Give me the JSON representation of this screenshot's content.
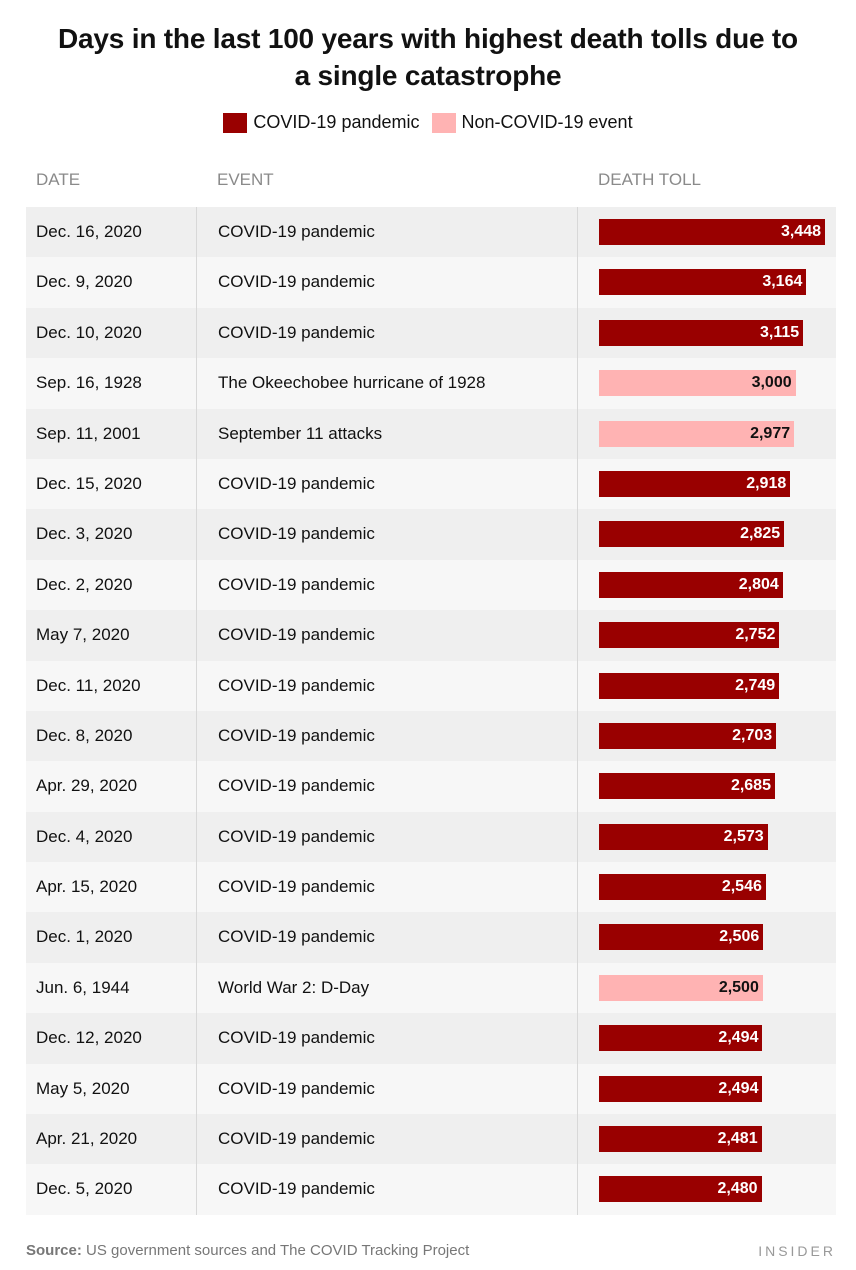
{
  "chart_data": {
    "type": "bar",
    "title_line1": "Days in the last 100 years with highest death tolls due to",
    "title_line2": "a single catastrophe",
    "legend": [
      {
        "label": "COVID-19 pandemic",
        "color": "#990000"
      },
      {
        "label": "Non-COVID-19 event",
        "color": "#ffb3b3"
      }
    ],
    "columns": {
      "date": "DATE",
      "event": "EVENT",
      "toll": "DEATH TOLL"
    },
    "xlim": [
      0,
      3448
    ],
    "rows": [
      {
        "date": "Dec. 16, 2020",
        "event": "COVID-19 pandemic",
        "value": 3448,
        "label": "3,448",
        "covid": true
      },
      {
        "date": "Dec. 9, 2020",
        "event": "COVID-19 pandemic",
        "value": 3164,
        "label": "3,164",
        "covid": true
      },
      {
        "date": "Dec. 10, 2020",
        "event": "COVID-19 pandemic",
        "value": 3115,
        "label": "3,115",
        "covid": true
      },
      {
        "date": "Sep. 16, 1928",
        "event": "The Okeechobee hurricane of 1928",
        "value": 3000,
        "label": "3,000",
        "covid": false
      },
      {
        "date": "Sep. 11, 2001",
        "event": "September 11 attacks",
        "value": 2977,
        "label": "2,977",
        "covid": false
      },
      {
        "date": "Dec. 15, 2020",
        "event": "COVID-19 pandemic",
        "value": 2918,
        "label": "2,918",
        "covid": true
      },
      {
        "date": "Dec. 3, 2020",
        "event": "COVID-19 pandemic",
        "value": 2825,
        "label": "2,825",
        "covid": true
      },
      {
        "date": "Dec. 2, 2020",
        "event": "COVID-19 pandemic",
        "value": 2804,
        "label": "2,804",
        "covid": true
      },
      {
        "date": "May 7, 2020",
        "event": "COVID-19 pandemic",
        "value": 2752,
        "label": "2,752",
        "covid": true
      },
      {
        "date": "Dec. 11, 2020",
        "event": "COVID-19 pandemic",
        "value": 2749,
        "label": "2,749",
        "covid": true
      },
      {
        "date": "Dec. 8, 2020",
        "event": "COVID-19 pandemic",
        "value": 2703,
        "label": "2,703",
        "covid": true
      },
      {
        "date": "Apr. 29, 2020",
        "event": "COVID-19 pandemic",
        "value": 2685,
        "label": "2,685",
        "covid": true
      },
      {
        "date": "Dec. 4, 2020",
        "event": "COVID-19 pandemic",
        "value": 2573,
        "label": "2,573",
        "covid": true
      },
      {
        "date": "Apr. 15, 2020",
        "event": "COVID-19 pandemic",
        "value": 2546,
        "label": "2,546",
        "covid": true
      },
      {
        "date": "Dec. 1, 2020",
        "event": "COVID-19 pandemic",
        "value": 2506,
        "label": "2,506",
        "covid": true
      },
      {
        "date": "Jun. 6, 1944",
        "event": "World War 2: D-Day",
        "value": 2500,
        "label": "2,500",
        "covid": false
      },
      {
        "date": "Dec. 12, 2020",
        "event": "COVID-19 pandemic",
        "value": 2494,
        "label": "2,494",
        "covid": true
      },
      {
        "date": "May 5, 2020",
        "event": "COVID-19 pandemic",
        "value": 2494,
        "label": "2,494",
        "covid": true
      },
      {
        "date": "Apr. 21, 2020",
        "event": "COVID-19 pandemic",
        "value": 2481,
        "label": "2,481",
        "covid": true
      },
      {
        "date": "Dec. 5, 2020",
        "event": "COVID-19 pandemic",
        "value": 2480,
        "label": "2,480",
        "covid": true
      }
    ]
  },
  "footer": {
    "source_label": "Source:",
    "source_text": " US government sources and The COVID Tracking Project",
    "brand": "INSIDER"
  }
}
